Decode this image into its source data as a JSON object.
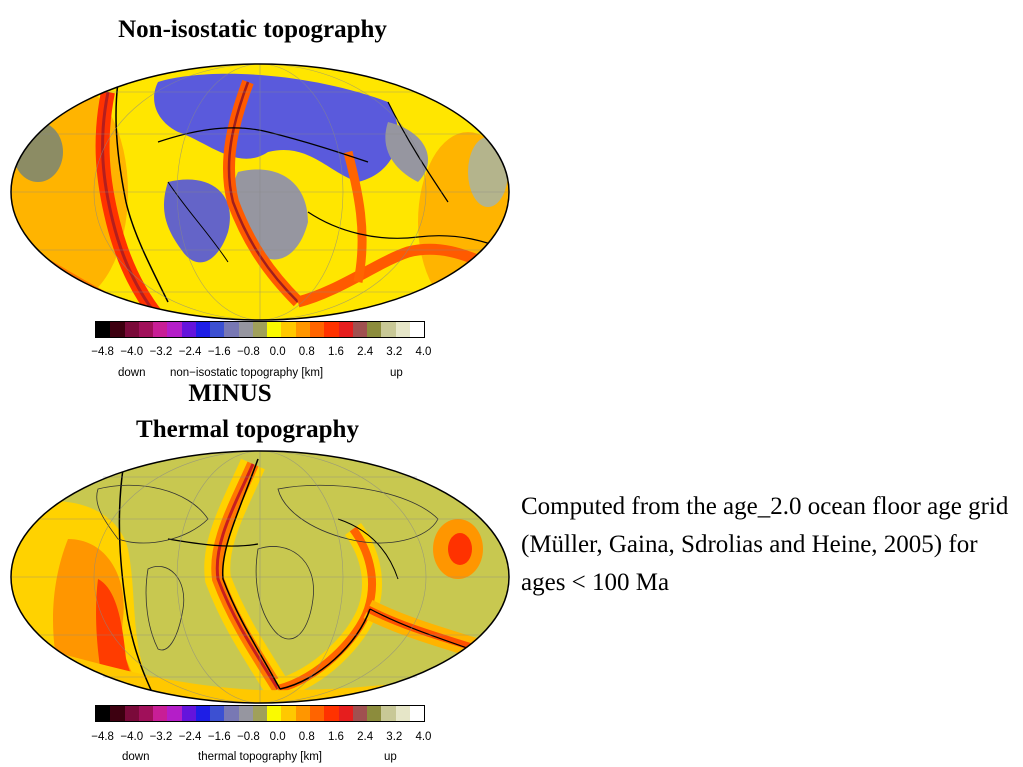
{
  "titles": {
    "top": "Non-isostatic topography",
    "minus": "MINUS",
    "bottom": "Thermal topography"
  },
  "colorbar": {
    "colors": [
      "#000000",
      "#3d0010",
      "#7a0a3a",
      "#a0105a",
      "#c81e96",
      "#b41ec8",
      "#6414dc",
      "#1e1ee6",
      "#3c50d2",
      "#7878b4",
      "#9696a0",
      "#a0a05a",
      "#fafa00",
      "#ffc800",
      "#ff9600",
      "#ff6400",
      "#ff3200",
      "#e61e1e",
      "#a05050",
      "#8c8c3c",
      "#c8c896",
      "#e6e6c8",
      "#ffffff"
    ],
    "ticks": [
      "−4.8",
      "−4.0",
      "−3.2",
      "−2.4",
      "−1.6",
      "−0.8",
      "0.0",
      "0.8",
      "1.6",
      "2.4",
      "3.2",
      "4.0"
    ]
  },
  "top_colorbar": {
    "down": "down",
    "label": "non−isostatic topography [km]",
    "up": "up"
  },
  "bottom_colorbar": {
    "down": "down",
    "label": "thermal topography [km]",
    "up": "up"
  },
  "note": "Computed from the age_2.0 ocean floor age grid (Müller, Gaina, Sdrolias and Heine, 2005) for ages < 100 Ma"
}
